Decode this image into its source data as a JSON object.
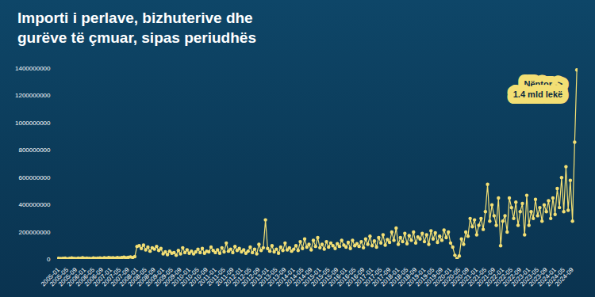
{
  "chart_data": {
    "type": "line",
    "title": "Importi i perlave, bizhuterive dhe gurëve të çmuar, sipas periudhës",
    "annotations": [
      "Nëntor -> 1.4 mld lekë"
    ],
    "color": "#f3df74",
    "marker": "circle",
    "grid": false,
    "ylim": [
      0,
      1400000000
    ],
    "yticks": [
      0,
      200000000,
      400000000,
      600000000,
      800000000,
      1000000000,
      1200000000,
      1400000000
    ],
    "categories": [
      "2005-01",
      null,
      null,
      null,
      "2005-05",
      null,
      null,
      null,
      "2005-09",
      null,
      null,
      null,
      "2006-01",
      null,
      null,
      null,
      "2006-05",
      null,
      null,
      null,
      "2006-09",
      null,
      null,
      null,
      "2007-01",
      null,
      null,
      null,
      "2007-05",
      null,
      null,
      null,
      "2007-09",
      null,
      null,
      null,
      "2008-01",
      null,
      null,
      null,
      "2008-05",
      null,
      null,
      null,
      "2008-09",
      null,
      null,
      null,
      "2009-01",
      null,
      null,
      null,
      "2009-05",
      null,
      null,
      null,
      "2009-09",
      null,
      null,
      null,
      "2010-01",
      null,
      null,
      null,
      "2010-05",
      null,
      null,
      null,
      "2010-09",
      null,
      null,
      null,
      "2011-01",
      null,
      null,
      null,
      "2011-05",
      null,
      null,
      null,
      "2011-09",
      null,
      null,
      null,
      "2012-01",
      null,
      null,
      null,
      "2012-05",
      null,
      null,
      null,
      "2012-09",
      null,
      null,
      null,
      "2013-01",
      null,
      null,
      null,
      "2013-05",
      null,
      null,
      null,
      "2013-09",
      null,
      null,
      null,
      "2014-01",
      null,
      null,
      null,
      "2014-05",
      null,
      null,
      null,
      "2014-09",
      null,
      null,
      null,
      "2015-01",
      null,
      null,
      null,
      "2015-05",
      null,
      null,
      null,
      "2015-09",
      null,
      null,
      null,
      "2016-01",
      null,
      null,
      null,
      "2016-05",
      null,
      null,
      null,
      "2016-09",
      null,
      null,
      null,
      "2017-01",
      null,
      null,
      null,
      "2017-05",
      null,
      null,
      null,
      "2017-09",
      null,
      null,
      null,
      "2018-01",
      null,
      null,
      null,
      "2018-05",
      null,
      null,
      null,
      "2018-09",
      null,
      null,
      null,
      "2019-01",
      null,
      null,
      null,
      "2019-05",
      null,
      null,
      null,
      "2019-09",
      null,
      null,
      null,
      "2020-01",
      null,
      null,
      null,
      "2020-05",
      null,
      null,
      null,
      "2020-09",
      null,
      null,
      null,
      "2021-01",
      null,
      null,
      null,
      "2021-05",
      null,
      null,
      null,
      "2021-09",
      null,
      null,
      null,
      "2022-01",
      null,
      null,
      null,
      "2022-05",
      null,
      null,
      null,
      "2022-09",
      null,
      null,
      null,
      "2023-01",
      null,
      null,
      null,
      "2023-05",
      null,
      null,
      null,
      "2023-09",
      null,
      null,
      null,
      "2024-01",
      null,
      null,
      null,
      "2024-05",
      null,
      null,
      null,
      "2024-09",
      null,
      null
    ],
    "values": [
      8000000,
      6000000,
      7000000,
      9000000,
      5000000,
      8000000,
      10000000,
      7000000,
      6000000,
      9000000,
      8000000,
      12000000,
      7000000,
      9000000,
      8000000,
      6000000,
      10000000,
      8000000,
      9000000,
      11000000,
      7000000,
      12000000,
      9000000,
      14000000,
      10000000,
      12000000,
      9000000,
      14000000,
      11000000,
      13000000,
      16000000,
      12000000,
      15000000,
      18000000,
      14000000,
      20000000,
      95000000,
      100000000,
      80000000,
      105000000,
      70000000,
      90000000,
      60000000,
      85000000,
      75000000,
      95000000,
      65000000,
      80000000,
      40000000,
      55000000,
      35000000,
      60000000,
      45000000,
      50000000,
      30000000,
      65000000,
      40000000,
      85000000,
      50000000,
      70000000,
      45000000,
      60000000,
      40000000,
      55000000,
      75000000,
      50000000,
      80000000,
      45000000,
      60000000,
      55000000,
      90000000,
      65000000,
      50000000,
      70000000,
      45000000,
      85000000,
      55000000,
      120000000,
      60000000,
      75000000,
      50000000,
      95000000,
      65000000,
      80000000,
      55000000,
      70000000,
      45000000,
      60000000,
      90000000,
      50000000,
      75000000,
      40000000,
      110000000,
      65000000,
      85000000,
      290000000,
      80000000,
      60000000,
      100000000,
      55000000,
      75000000,
      45000000,
      90000000,
      65000000,
      120000000,
      70000000,
      85000000,
      60000000,
      75000000,
      100000000,
      65000000,
      130000000,
      80000000,
      150000000,
      90000000,
      110000000,
      70000000,
      140000000,
      95000000,
      160000000,
      85000000,
      110000000,
      75000000,
      130000000,
      90000000,
      120000000,
      100000000,
      80000000,
      115000000,
      95000000,
      140000000,
      105000000,
      90000000,
      125000000,
      80000000,
      140000000,
      100000000,
      115000000,
      95000000,
      130000000,
      85000000,
      150000000,
      110000000,
      170000000,
      100000000,
      135000000,
      90000000,
      160000000,
      120000000,
      180000000,
      105000000,
      145000000,
      125000000,
      200000000,
      140000000,
      230000000,
      110000000,
      160000000,
      130000000,
      190000000,
      115000000,
      175000000,
      140000000,
      200000000,
      120000000,
      165000000,
      150000000,
      190000000,
      130000000,
      180000000,
      110000000,
      210000000,
      150000000,
      195000000,
      125000000,
      170000000,
      140000000,
      215000000,
      160000000,
      200000000,
      120000000,
      90000000,
      30000000,
      5000000,
      25000000,
      150000000,
      110000000,
      200000000,
      170000000,
      300000000,
      240000000,
      290000000,
      180000000,
      250000000,
      300000000,
      220000000,
      350000000,
      550000000,
      280000000,
      400000000,
      320000000,
      250000000,
      450000000,
      100000000,
      280000000,
      320000000,
      200000000,
      450000000,
      380000000,
      300000000,
      420000000,
      250000000,
      350000000,
      410000000,
      180000000,
      470000000,
      250000000,
      350000000,
      300000000,
      440000000,
      320000000,
      380000000,
      280000000,
      400000000,
      350000000,
      430000000,
      300000000,
      450000000,
      330000000,
      520000000,
      380000000,
      600000000,
      350000000,
      680000000,
      360000000,
      580000000,
      280000000,
      860000000,
      1390000000
    ]
  }
}
